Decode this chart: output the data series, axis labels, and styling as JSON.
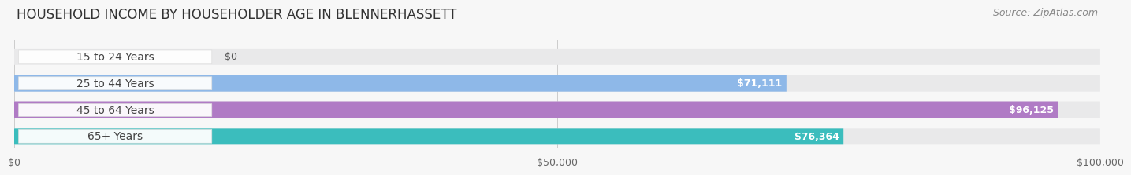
{
  "title": "HOUSEHOLD INCOME BY HOUSEHOLDER AGE IN BLENNERHASSETT",
  "source": "Source: ZipAtlas.com",
  "categories": [
    "15 to 24 Years",
    "25 to 44 Years",
    "45 to 64 Years",
    "65+ Years"
  ],
  "values": [
    0,
    71111,
    96125,
    76364
  ],
  "bar_colors": [
    "#EF9FA3",
    "#8EB8E8",
    "#B07BC5",
    "#3BBDBD"
  ],
  "value_labels": [
    "$0",
    "$71,111",
    "$96,125",
    "$76,364"
  ],
  "xmax": 100000,
  "xticks": [
    0,
    50000,
    100000
  ],
  "xtick_labels": [
    "$0",
    "$50,000",
    "$100,000"
  ],
  "background_color": "#f7f7f7",
  "bar_background": "#e9e9ea",
  "bar_height": 0.62,
  "title_fontsize": 12,
  "label_fontsize": 10,
  "value_fontsize": 9,
  "source_fontsize": 9
}
